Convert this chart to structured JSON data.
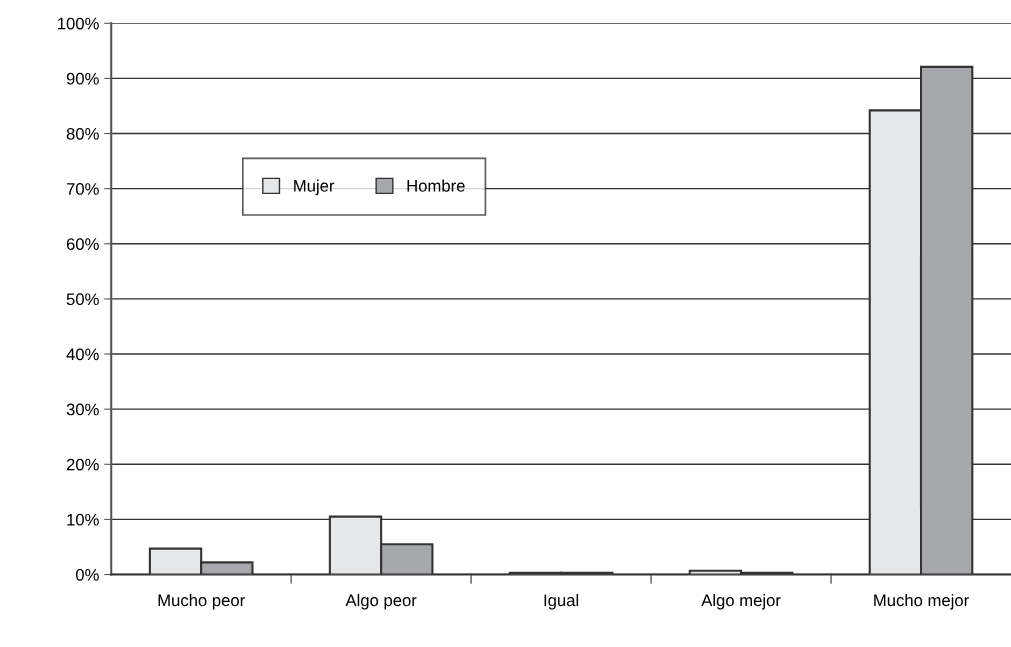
{
  "chart_data": {
    "type": "bar",
    "categories": [
      "Mucho peor",
      "Algo peor",
      "Igual",
      "Algo mejor",
      "Mucho mejor"
    ],
    "series": [
      {
        "name": "Mujer",
        "color": "#e6e7e8",
        "values": [
          4.7,
          10.5,
          0.3,
          0.7,
          84.2
        ]
      },
      {
        "name": "Hombre",
        "color": "#a7a8ab",
        "values": [
          2.2,
          5.5,
          0.3,
          0.3,
          92.1
        ]
      }
    ],
    "ylim": [
      0,
      100
    ],
    "yticks": [
      {
        "value": 0,
        "label": "0%"
      },
      {
        "value": 10,
        "label": "10%"
      },
      {
        "value": 20,
        "label": "20%"
      },
      {
        "value": 30,
        "label": "30%"
      },
      {
        "value": 40,
        "label": "40%"
      },
      {
        "value": 50,
        "label": "50%"
      },
      {
        "value": 60,
        "label": "60%"
      },
      {
        "value": 70,
        "label": "70%"
      },
      {
        "value": 80,
        "label": "80%"
      },
      {
        "value": 90,
        "label": "90%"
      },
      {
        "value": 100,
        "label": "100%"
      }
    ],
    "grid": "y",
    "legend": "top left"
  }
}
